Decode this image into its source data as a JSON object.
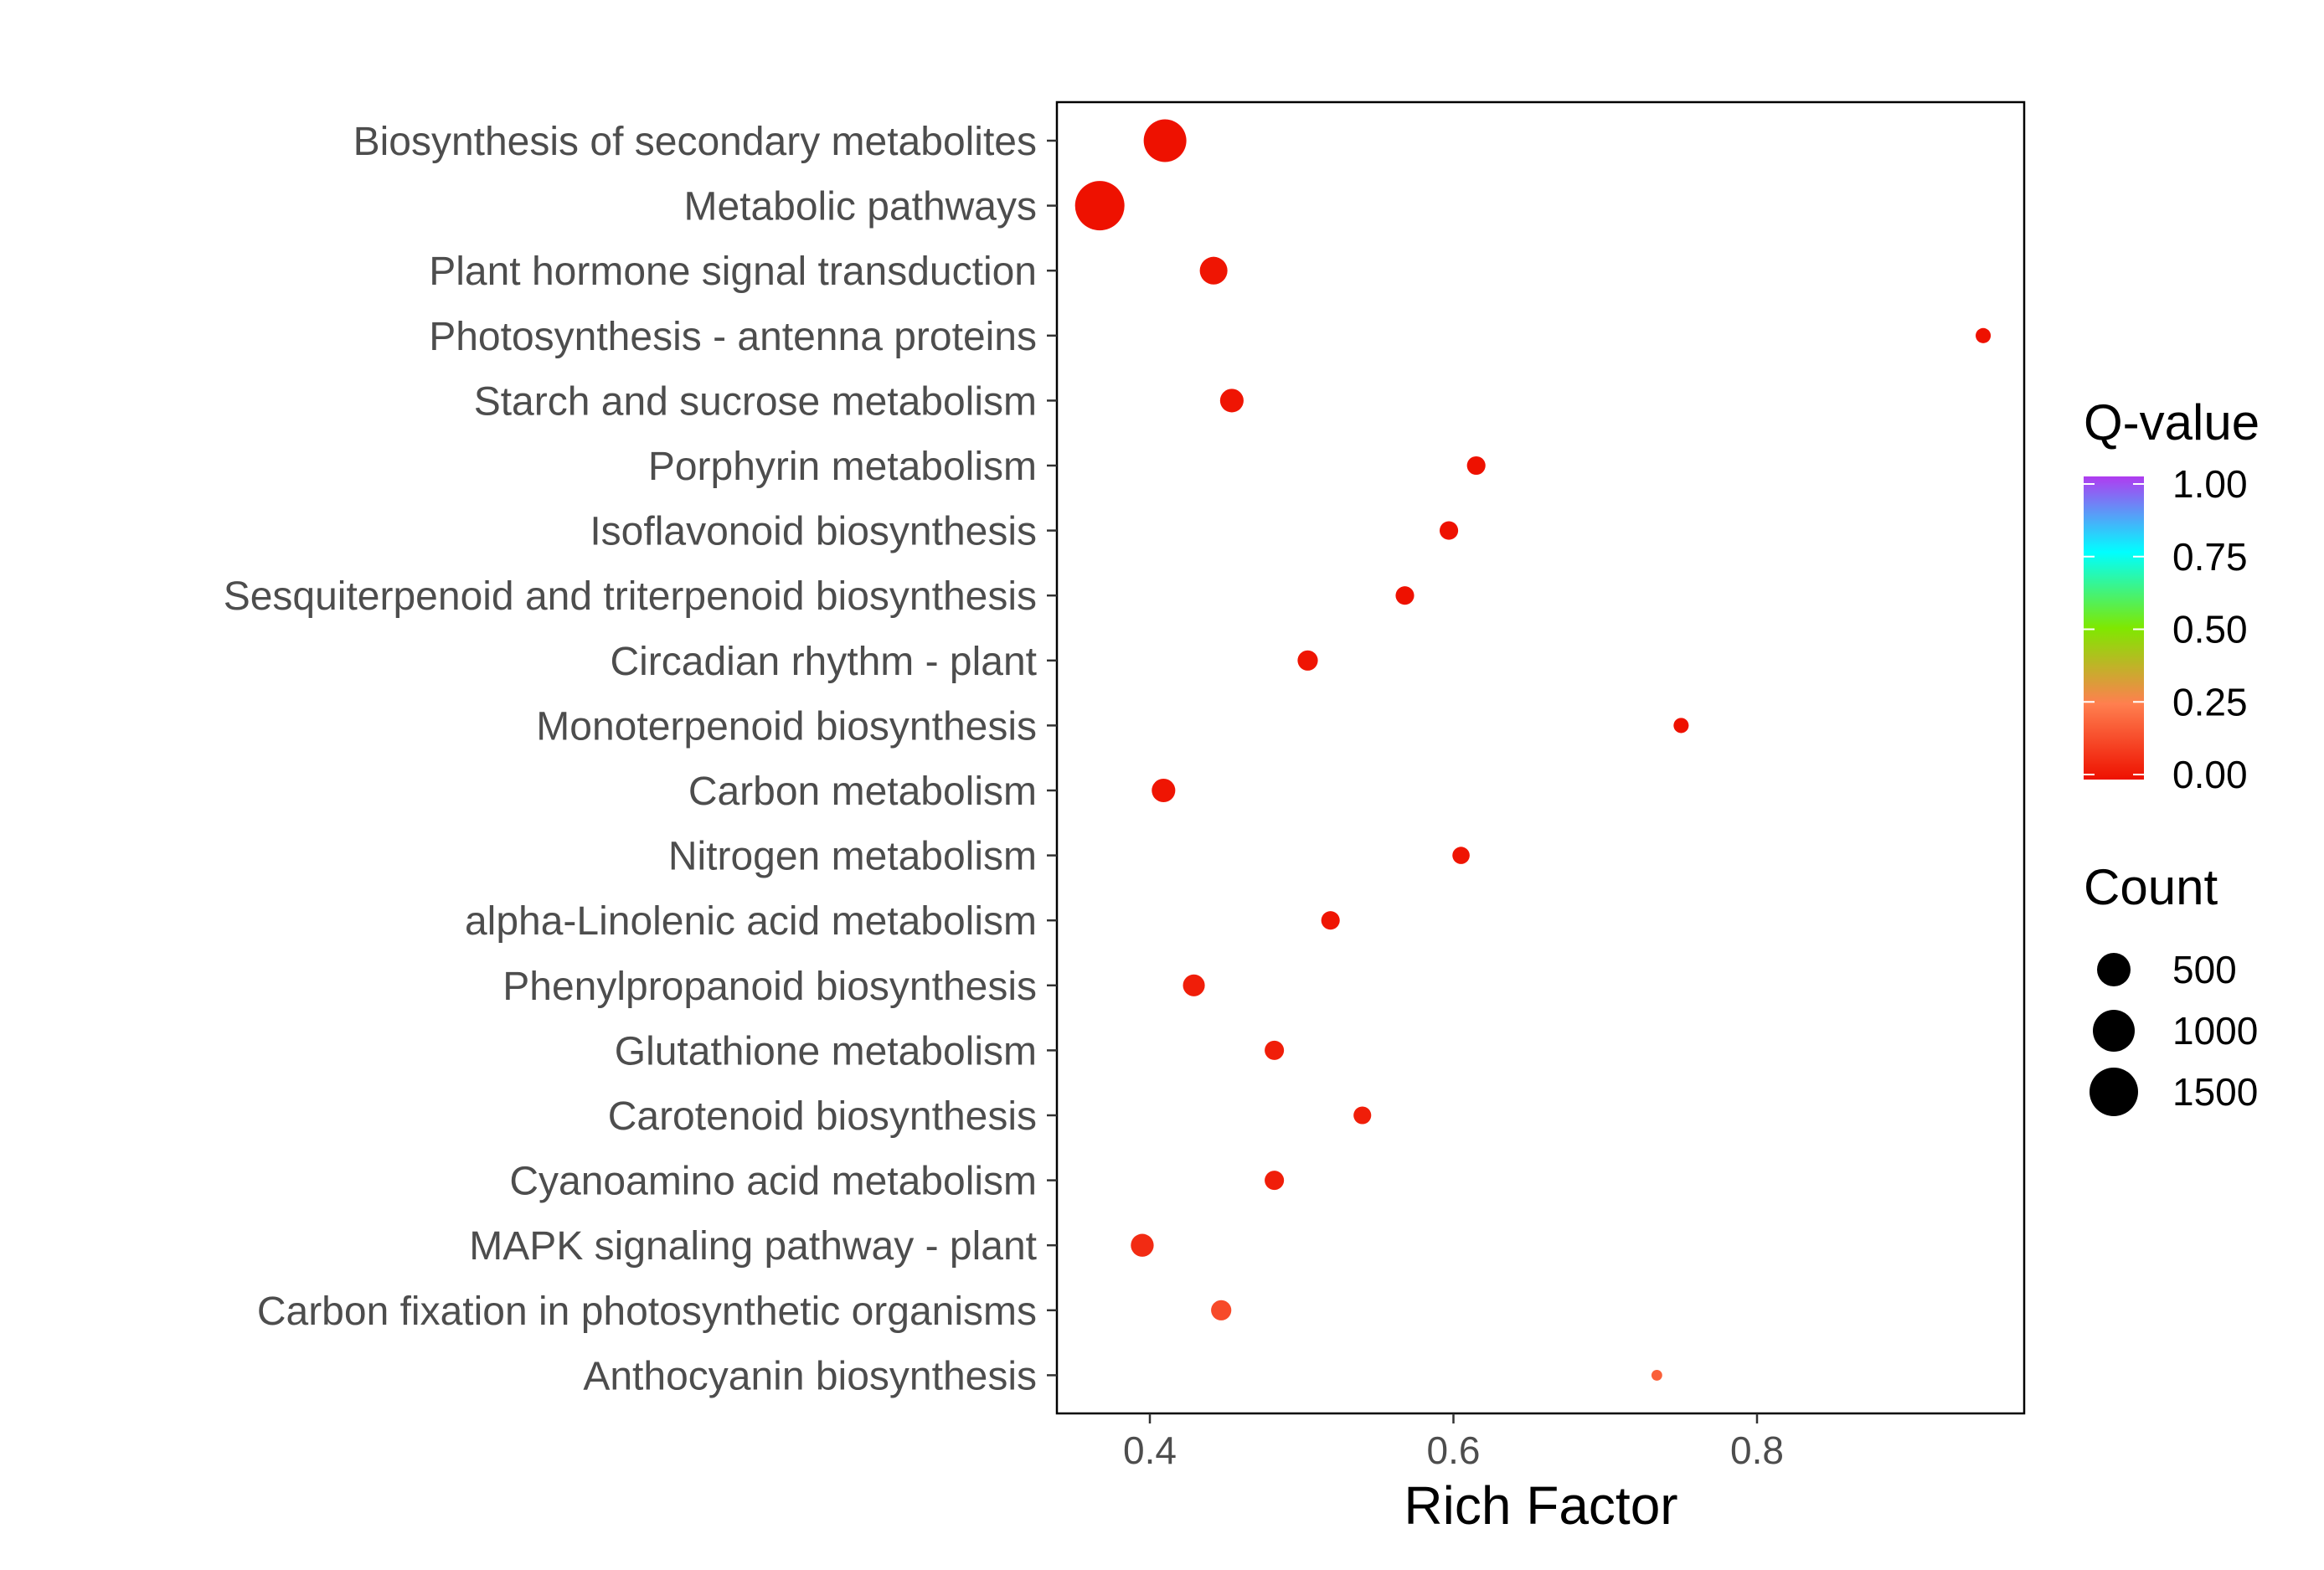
{
  "chart_data": {
    "type": "scatter",
    "title": "",
    "xlabel": "Rich Factor",
    "ylabel": "",
    "xlim": [
      0.34,
      0.98
    ],
    "xticks": [
      "0.4",
      "0.6",
      "0.8"
    ],
    "xtick_values": [
      0.4,
      0.6,
      0.8
    ],
    "grid": false,
    "categories": [
      "Biosynthesis of secondary metabolites",
      "Metabolic pathways",
      "Plant hormone signal transduction",
      "Photosynthesis - antenna proteins",
      "Starch and sucrose metabolism",
      "Porphyrin metabolism",
      "Isoflavonoid biosynthesis",
      "Sesquiterpenoid and triterpenoid biosynthesis",
      "Circadian rhythm - plant",
      "Monoterpenoid biosynthesis",
      "Carbon metabolism",
      "Nitrogen metabolism",
      "alpha-Linolenic acid metabolism",
      "Phenylpropanoid biosynthesis",
      "Glutathione metabolism",
      "Carotenoid biosynthesis",
      "Cyanoamino acid metabolism",
      "MAPK signaling pathway - plant",
      "Carbon fixation in photosynthetic organisms",
      "Anthocyanin biosynthesis"
    ],
    "rich_factor": [
      0.41,
      0.367,
      0.442,
      0.949,
      0.454,
      0.615,
      0.597,
      0.568,
      0.504,
      0.75,
      0.409,
      0.605,
      0.519,
      0.429,
      0.482,
      0.54,
      0.482,
      0.395,
      0.447,
      0.734
    ],
    "count": [
      1160,
      1570,
      460,
      105,
      320,
      180,
      180,
      180,
      225,
      105,
      320,
      150,
      180,
      270,
      200,
      160,
      200,
      300,
      225,
      30
    ],
    "q_value": [
      0.0,
      0.0,
      0.01,
      0.0,
      0.01,
      0.0,
      0.0,
      0.0,
      0.01,
      0.0,
      0.01,
      0.01,
      0.01,
      0.03,
      0.03,
      0.03,
      0.03,
      0.06,
      0.13,
      0.18
    ],
    "legend": {
      "color_title": "Q-value",
      "color_ticks": [
        "1.00",
        "0.75",
        "0.50",
        "0.25",
        "0.00"
      ],
      "color_tick_values": [
        1.0,
        0.75,
        0.5,
        0.25,
        0.0
      ],
      "color_stops": [
        "#ee1100",
        "#ff7f4f",
        "#7fe800",
        "#00ffff",
        "#b03bf0"
      ],
      "size_title": "Count",
      "size_labels": [
        "500",
        "1000",
        "1500"
      ],
      "size_values": [
        500,
        1000,
        1500
      ],
      "placement": "right"
    }
  }
}
